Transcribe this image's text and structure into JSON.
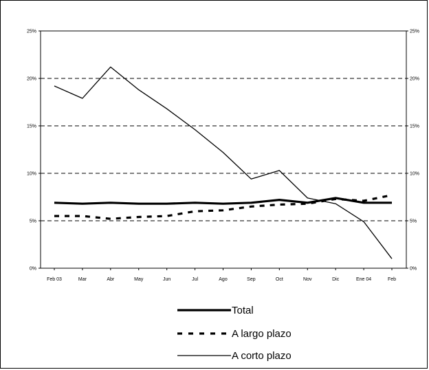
{
  "chart_data": {
    "type": "line",
    "categories": [
      "Feb 03",
      "Mar",
      "Abr",
      "May",
      "Jun",
      "Jul",
      "Ago",
      "Sep",
      "Oct",
      "Nov",
      "Dic",
      "Ene 04",
      "Feb"
    ],
    "series": [
      {
        "name": "Total",
        "style": "thick-solid",
        "values": [
          6.9,
          6.8,
          6.9,
          6.8,
          6.8,
          6.9,
          6.8,
          6.9,
          7.2,
          6.9,
          7.4,
          6.9,
          6.9
        ]
      },
      {
        "name": "A largo plazo",
        "style": "dashed",
        "values": [
          5.5,
          5.5,
          5.2,
          5.4,
          5.5,
          6.0,
          6.1,
          6.5,
          6.7,
          6.8,
          7.3,
          7.1,
          7.7
        ]
      },
      {
        "name": "A corto plazo",
        "style": "thin-solid",
        "values": [
          19.2,
          17.9,
          21.2,
          18.8,
          16.8,
          14.6,
          12.2,
          9.4,
          10.3,
          7.4,
          6.8,
          4.9,
          1.0
        ]
      }
    ],
    "ylim": [
      0,
      25
    ],
    "y_ticks": [
      "0%",
      "5%",
      "10%",
      "15%",
      "20%",
      "25%"
    ],
    "y_tick_values": [
      0,
      5,
      10,
      15,
      20,
      25
    ],
    "grid": "horizontal-dashed",
    "legend_position": "bottom-center",
    "colors": {
      "line": "#000000",
      "grid": "#000000",
      "background": "#ffffff"
    }
  }
}
